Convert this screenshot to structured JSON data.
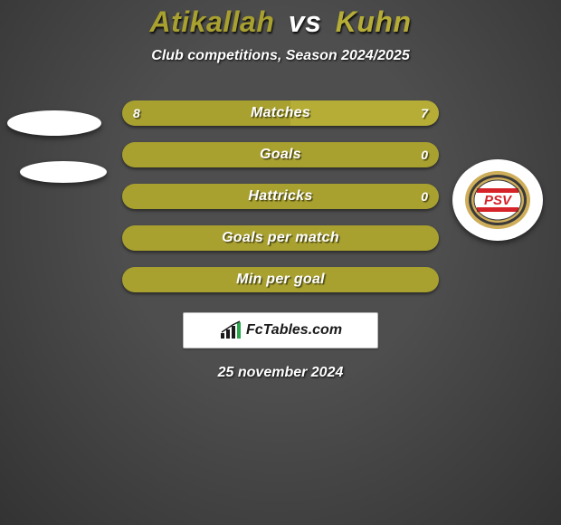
{
  "background_color": "#4e4e4e",
  "title": {
    "player1": "Atikallah",
    "vs": "vs",
    "player2": "Kuhn",
    "player1_color": "#a8a02f",
    "vs_color": "#ffffff",
    "player2_color": "#b5ad36"
  },
  "subtitle": "Club competitions, Season 2024/2025",
  "date": "25 november 2024",
  "colors": {
    "left": "#a8a02f",
    "right": "#b5ad36"
  },
  "bars": [
    {
      "label": "Matches",
      "left": "8",
      "right": "7",
      "left_pct": 53,
      "right_pct": 47,
      "show_left": true,
      "show_right": true
    },
    {
      "label": "Goals",
      "left": "",
      "right": "0",
      "left_pct": 100,
      "right_pct": 0,
      "show_left": false,
      "show_right": true
    },
    {
      "label": "Hattricks",
      "left": "",
      "right": "0",
      "left_pct": 100,
      "right_pct": 0,
      "show_left": false,
      "show_right": true
    },
    {
      "label": "Goals per match",
      "left": "",
      "right": "",
      "left_pct": 100,
      "right_pct": 0,
      "show_left": false,
      "show_right": false
    },
    {
      "label": "Min per goal",
      "left": "",
      "right": "",
      "left_pct": 100,
      "right_pct": 0,
      "show_left": false,
      "show_right": false
    }
  ],
  "badge": {
    "text": "PSV",
    "stripe_colors": [
      "#d6232a",
      "#ffffff"
    ],
    "text_color": "#d6232a",
    "ring_outer": "#cfae5a",
    "ring_inner": "#3a3a3a"
  },
  "logo": {
    "text": "FcTables.com",
    "bar_color": "#2aa84a"
  }
}
